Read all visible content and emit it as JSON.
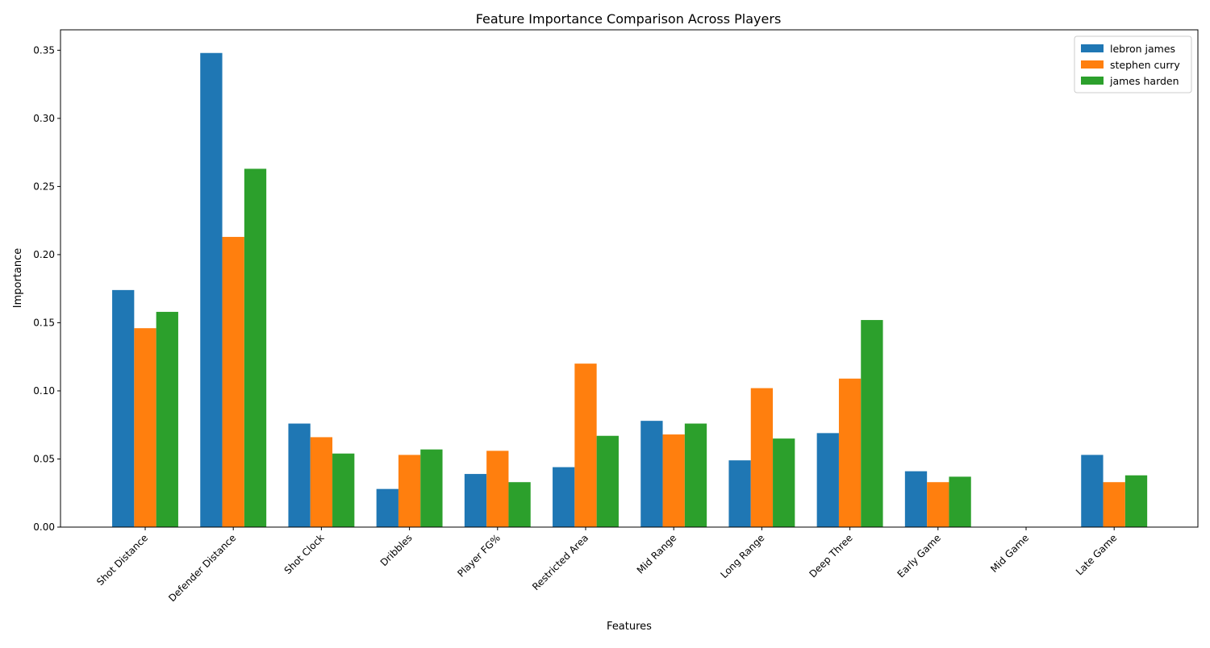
{
  "chart_data": {
    "type": "bar",
    "title": "Feature Importance Comparison Across Players",
    "xlabel": "Features",
    "ylabel": "Importance",
    "ylim": [
      0,
      0.365
    ],
    "yticks": [
      "0.00",
      "0.05",
      "0.10",
      "0.15",
      "0.20",
      "0.25",
      "0.30",
      "0.35"
    ],
    "categories": [
      "Shot Distance",
      "Defender Distance",
      "Shot Clock",
      "Dribbles",
      "Player FG%",
      "Restricted Area",
      "Mid Range",
      "Long Range",
      "Deep Three",
      "Early Game",
      "Mid Game",
      "Late Game"
    ],
    "series": [
      {
        "name": "lebron james",
        "color": "#1f77b4",
        "values": [
          0.174,
          0.348,
          0.076,
          0.028,
          0.039,
          0.044,
          0.078,
          0.049,
          0.069,
          0.041,
          0.0,
          0.053
        ]
      },
      {
        "name": "stephen curry",
        "color": "#ff7f0e",
        "values": [
          0.146,
          0.213,
          0.066,
          0.053,
          0.056,
          0.12,
          0.068,
          0.102,
          0.109,
          0.033,
          0.0,
          0.033
        ]
      },
      {
        "name": "james harden",
        "color": "#2ca02c",
        "values": [
          0.158,
          0.263,
          0.054,
          0.057,
          0.033,
          0.067,
          0.076,
          0.065,
          0.152,
          0.037,
          0.0,
          0.038
        ]
      }
    ],
    "grid": false,
    "legend_position": "top-right"
  }
}
